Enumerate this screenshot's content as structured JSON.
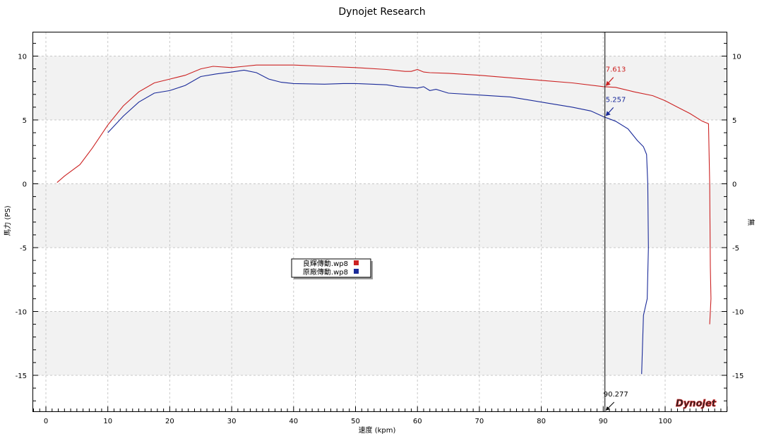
{
  "chart_data": {
    "type": "line",
    "title": "Dynojet Research",
    "xlabel": "速度 (kpm)",
    "ylabel": "馬力 (PS)",
    "ylabel_right": "無",
    "xlim": [
      -2,
      110
    ],
    "ylim": [
      -18,
      12
    ],
    "x_ticks": [
      0,
      10,
      20,
      30,
      40,
      50,
      60,
      70,
      80,
      90,
      100
    ],
    "y_ticks": [
      10,
      5,
      0,
      -5,
      -10,
      -15
    ],
    "grid": true,
    "legend_position": "center-left",
    "series": [
      {
        "name": "良輝傳動.wp8",
        "color": "#cc2222",
        "points": [
          [
            1.8,
            0.1
          ],
          [
            3,
            0.6
          ],
          [
            5.5,
            1.5
          ],
          [
            7.5,
            2.8
          ],
          [
            10,
            4.6
          ],
          [
            12.5,
            6.1
          ],
          [
            15,
            7.2
          ],
          [
            17.5,
            7.9
          ],
          [
            20,
            8.2
          ],
          [
            22.5,
            8.5
          ],
          [
            25,
            9.0
          ],
          [
            27,
            9.2
          ],
          [
            30,
            9.1
          ],
          [
            32,
            9.2
          ],
          [
            34,
            9.3
          ],
          [
            37,
            9.3
          ],
          [
            40,
            9.3
          ],
          [
            45,
            9.2
          ],
          [
            50,
            9.1
          ],
          [
            55,
            8.95
          ],
          [
            58,
            8.8
          ],
          [
            59,
            8.8
          ],
          [
            60,
            8.95
          ],
          [
            61,
            8.75
          ],
          [
            62,
            8.7
          ],
          [
            65,
            8.65
          ],
          [
            70,
            8.5
          ],
          [
            75,
            8.3
          ],
          [
            80,
            8.1
          ],
          [
            85,
            7.9
          ],
          [
            90,
            7.61
          ],
          [
            92,
            7.55
          ],
          [
            95,
            7.2
          ],
          [
            98,
            6.9
          ],
          [
            100,
            6.5
          ],
          [
            102,
            6.0
          ],
          [
            104,
            5.5
          ],
          [
            106,
            4.9
          ],
          [
            107,
            4.7
          ],
          [
            107.2,
            0
          ],
          [
            107.3,
            -6.5
          ],
          [
            107.4,
            -9
          ],
          [
            107.2,
            -11
          ]
        ]
      },
      {
        "name": "原廠傳動.wp8",
        "color": "#1a2a99",
        "points": [
          [
            10,
            4.0
          ],
          [
            12.5,
            5.3
          ],
          [
            15,
            6.4
          ],
          [
            17.5,
            7.1
          ],
          [
            20,
            7.3
          ],
          [
            22.5,
            7.7
          ],
          [
            25,
            8.4
          ],
          [
            27.5,
            8.6
          ],
          [
            30,
            8.75
          ],
          [
            32,
            8.9
          ],
          [
            34,
            8.7
          ],
          [
            36,
            8.2
          ],
          [
            38,
            7.95
          ],
          [
            40,
            7.85
          ],
          [
            45,
            7.8
          ],
          [
            48,
            7.85
          ],
          [
            50,
            7.85
          ],
          [
            55,
            7.75
          ],
          [
            57,
            7.6
          ],
          [
            60,
            7.5
          ],
          [
            61,
            7.6
          ],
          [
            62,
            7.3
          ],
          [
            63,
            7.4
          ],
          [
            65,
            7.1
          ],
          [
            70,
            6.95
          ],
          [
            75,
            6.8
          ],
          [
            80,
            6.4
          ],
          [
            85,
            6.0
          ],
          [
            88,
            5.7
          ],
          [
            90,
            5.26
          ],
          [
            92,
            4.9
          ],
          [
            94,
            4.3
          ],
          [
            95.5,
            3.4
          ],
          [
            96.5,
            2.9
          ],
          [
            97,
            2.3
          ],
          [
            97.2,
            0
          ],
          [
            97.3,
            -5
          ],
          [
            97.1,
            -9
          ],
          [
            96.5,
            -10.3
          ],
          [
            96.2,
            -14.9
          ]
        ]
      }
    ],
    "annotations": [
      {
        "x": 90.277,
        "y": 7.613,
        "label": "7.613",
        "color": "#cc2222"
      },
      {
        "x": 90.277,
        "y": 5.257,
        "label": "5.257",
        "color": "#1a2a99"
      }
    ],
    "cursor": {
      "x": 90.277,
      "label": "90.277"
    },
    "logo_text": "Dynojet"
  }
}
